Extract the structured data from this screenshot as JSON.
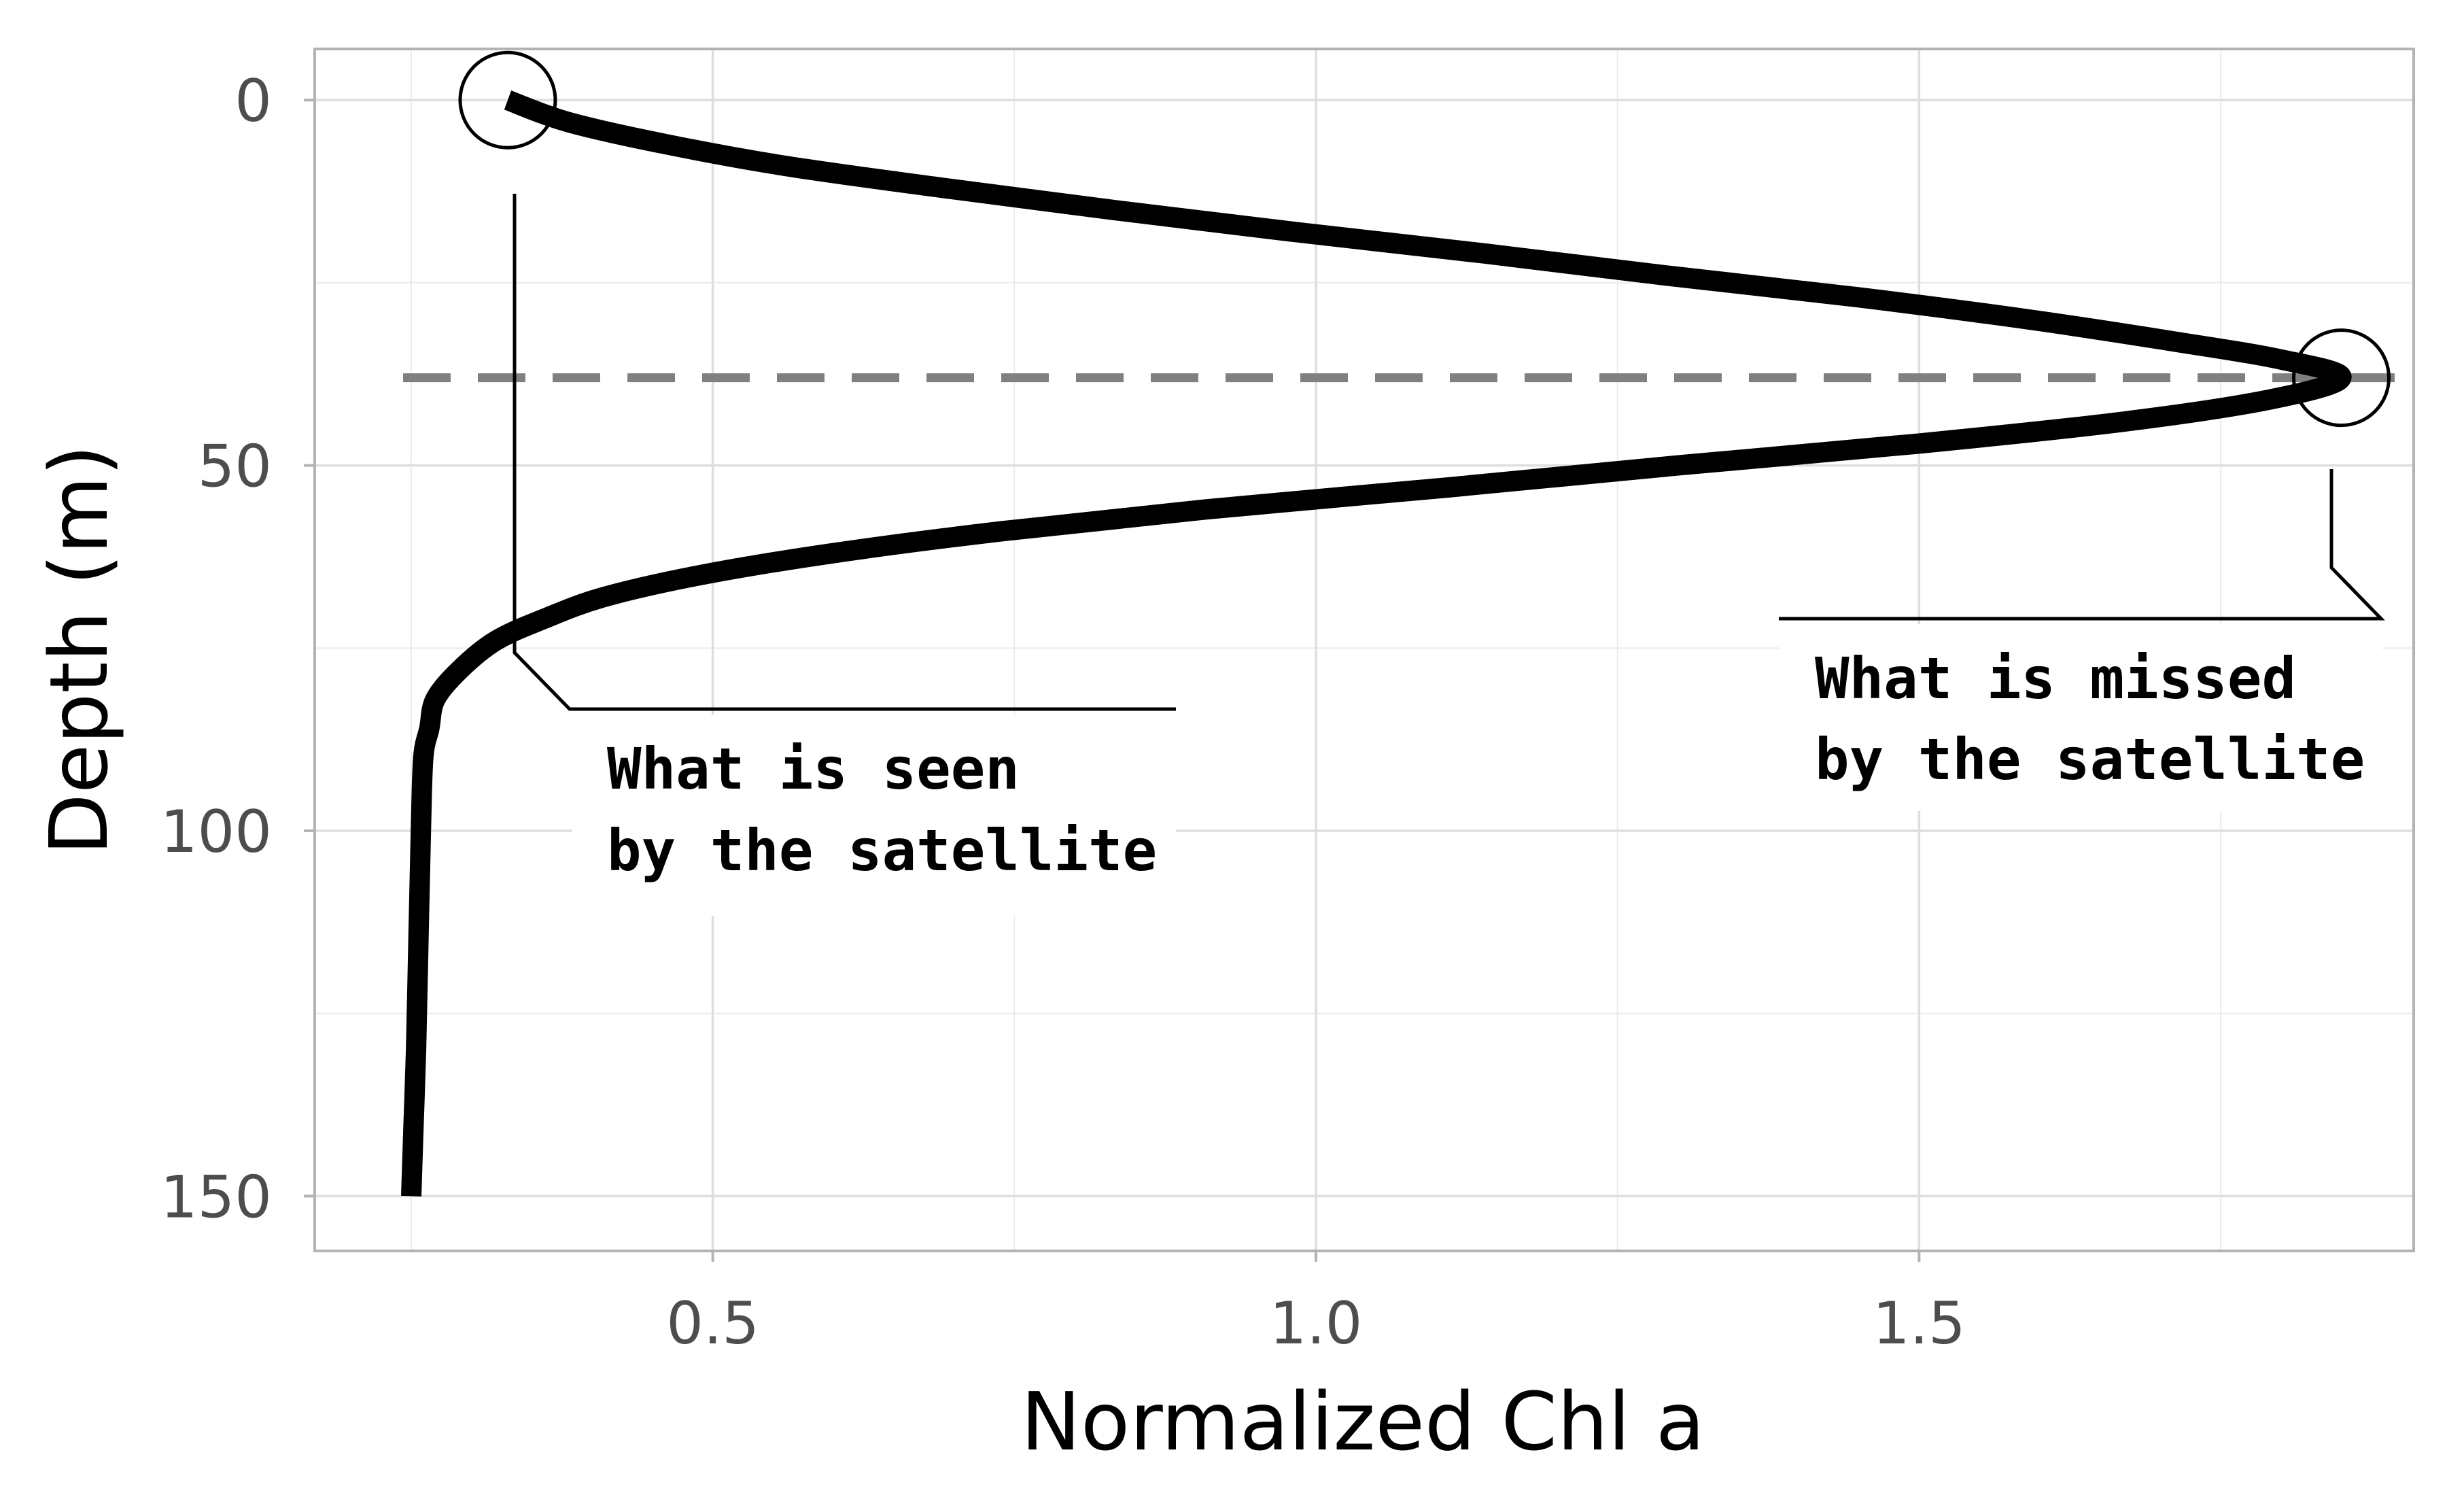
{
  "chart_data": {
    "type": "line",
    "xlabel": "Normalized Chl a",
    "ylabel": "Depth (m)",
    "xlim": [
      0.17,
      1.91
    ],
    "ylim": [
      157.5,
      -7
    ],
    "y_inverted": true,
    "grid": true,
    "x_ticks": [
      0.5,
      1.0,
      1.5
    ],
    "x_tick_labels": [
      "0.5",
      "1.0",
      "1.5"
    ],
    "y_ticks": [
      0,
      50,
      100,
      150
    ],
    "y_tick_labels": [
      "0",
      "50",
      "100",
      "150"
    ],
    "series": [
      {
        "color": "#000000",
        "points": [
          [
            0.33,
            0
          ],
          [
            0.38,
            3
          ],
          [
            0.46,
            6
          ],
          [
            0.56,
            9
          ],
          [
            0.69,
            12
          ],
          [
            0.83,
            15
          ],
          [
            0.98,
            18
          ],
          [
            1.14,
            21
          ],
          [
            1.29,
            24
          ],
          [
            1.45,
            27
          ],
          [
            1.59,
            30
          ],
          [
            1.71,
            33
          ],
          [
            1.8,
            35.5
          ],
          [
            1.85,
            38
          ],
          [
            1.79,
            41
          ],
          [
            1.67,
            44
          ],
          [
            1.5,
            47
          ],
          [
            1.3,
            50
          ],
          [
            1.11,
            53
          ],
          [
            0.91,
            56
          ],
          [
            0.74,
            59
          ],
          [
            0.6,
            62
          ],
          [
            0.49,
            65
          ],
          [
            0.41,
            68
          ],
          [
            0.36,
            71
          ],
          [
            0.32,
            74
          ],
          [
            0.29,
            78
          ],
          [
            0.27,
            82
          ],
          [
            0.265,
            86
          ],
          [
            0.26,
            90
          ],
          [
            0.258,
            100
          ],
          [
            0.256,
            115
          ],
          [
            0.254,
            130
          ],
          [
            0.252,
            140
          ],
          [
            0.25,
            150
          ]
        ]
      }
    ],
    "reference_line": {
      "orientation": "horizontal",
      "y": 38,
      "style": "dashed",
      "color": "#808080"
    },
    "annotations": [
      {
        "lines": [
          "What is seen",
          "by the satellite"
        ],
        "target": {
          "x": 0.33,
          "y": 0
        },
        "marker": "circle"
      },
      {
        "lines": [
          "What is missed",
          "by the satellite"
        ],
        "target": {
          "x": 1.85,
          "y": 38
        },
        "marker": "circle"
      }
    ]
  }
}
